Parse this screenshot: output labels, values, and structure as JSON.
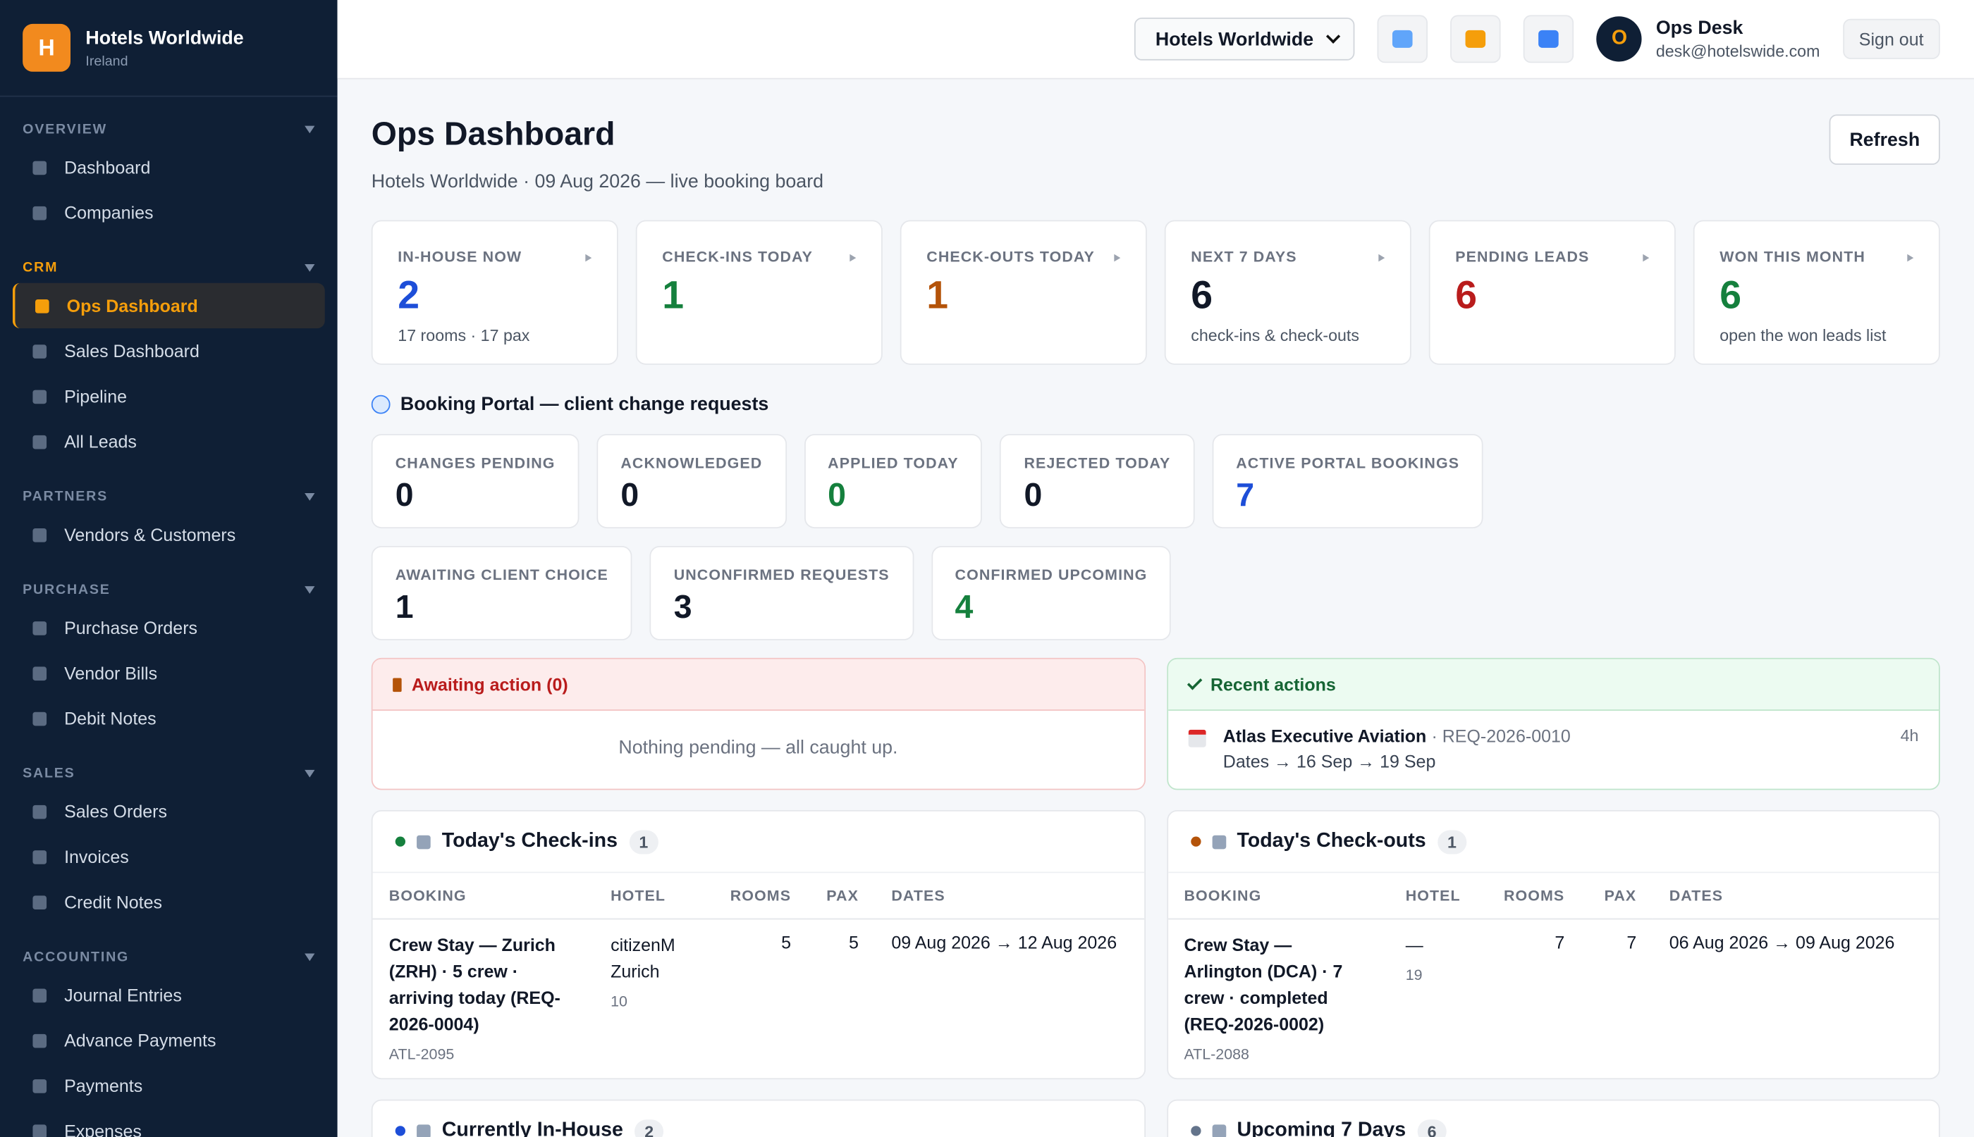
{
  "sidebar": {
    "brand": {
      "initial": "H",
      "name": "Hotels Worldwide",
      "subtitle": "Ireland"
    },
    "sections": [
      {
        "title": "OVERVIEW",
        "items": [
          {
            "label": "Dashboard"
          },
          {
            "label": "Companies"
          }
        ]
      },
      {
        "title": "CRM",
        "items": [
          {
            "label": "Ops Dashboard",
            "active": true
          },
          {
            "label": "Sales Dashboard"
          },
          {
            "label": "Pipeline"
          },
          {
            "label": "All Leads"
          }
        ]
      },
      {
        "title": "PARTNERS",
        "items": [
          {
            "label": "Vendors & Customers"
          }
        ]
      },
      {
        "title": "PURCHASE",
        "items": [
          {
            "label": "Purchase Orders"
          },
          {
            "label": "Vendor Bills"
          },
          {
            "label": "Debit Notes"
          }
        ]
      },
      {
        "title": "SALES",
        "items": [
          {
            "label": "Sales Orders"
          },
          {
            "label": "Invoices"
          },
          {
            "label": "Credit Notes"
          }
        ]
      },
      {
        "title": "ACCOUNTING",
        "items": [
          {
            "label": "Journal Entries"
          },
          {
            "label": "Advance Payments"
          },
          {
            "label": "Payments"
          },
          {
            "label": "Expenses"
          }
        ]
      }
    ]
  },
  "topbar": {
    "company_select": "Hotels Worldwide",
    "user": {
      "initial": "O",
      "name": "Ops Desk",
      "email": "desk@hotelswide.com"
    },
    "sign_out": "Sign out"
  },
  "header": {
    "title": "Ops Dashboard",
    "subtitle": "Hotels Worldwide · 09 Aug 2026 — live booking board",
    "refresh": "Refresh"
  },
  "kpis": [
    {
      "label": "IN-HOUSE NOW",
      "value": 2,
      "note": "17 rooms · 17 pax",
      "color": "#1d4ed8"
    },
    {
      "label": "CHECK-INS TODAY",
      "value": 1,
      "color": "#15803d"
    },
    {
      "label": "CHECK-OUTS TODAY",
      "value": 1,
      "color": "#b45309"
    },
    {
      "label": "NEXT 7 DAYS",
      "value": 6,
      "note": "check-ins & check-outs",
      "color": "#111827"
    },
    {
      "label": "PENDING LEADS",
      "value": 6,
      "color": "#b91c1c"
    },
    {
      "label": "WON THIS MONTH",
      "value": 6,
      "note": "open the won leads list",
      "color": "#15803d"
    }
  ],
  "portal": {
    "title": "Booking Portal — client change requests",
    "stats": [
      {
        "label": "CHANGES PENDING",
        "value": 0,
        "color": "#111827"
      },
      {
        "label": "ACKNOWLEDGED",
        "value": 0,
        "color": "#111827"
      },
      {
        "label": "APPLIED TODAY",
        "value": 0,
        "color": "#15803d"
      },
      {
        "label": "REJECTED TODAY",
        "value": 0,
        "color": "#111827"
      },
      {
        "label": "ACTIVE PORTAL BOOKINGS",
        "value": 7,
        "color": "#1d4ed8"
      },
      {
        "label": "AWAITING CLIENT CHOICE",
        "value": 1,
        "color": "#111827"
      },
      {
        "label": "UNCONFIRMED REQUESTS",
        "value": 3,
        "color": "#111827"
      },
      {
        "label": "CONFIRMED UPCOMING",
        "value": 4,
        "color": "#15803d"
      }
    ]
  },
  "awaiting": {
    "title": "Awaiting action (0)",
    "empty": "Nothing pending — all caught up."
  },
  "recent": {
    "title": "Recent actions",
    "items": [
      {
        "client": "Atlas Executive Aviation",
        "ref": "· REQ-2026-0010",
        "detail": "Dates → 16 Sep → 19 Sep",
        "age": "4h"
      }
    ]
  },
  "tables": [
    {
      "title": "Today's Check-ins",
      "count": 1,
      "dot": "#15803d",
      "columns": [
        "BOOKING",
        "HOTEL",
        "ROOMS",
        "PAX",
        "DATES"
      ],
      "rows": [
        {
          "booking": "Crew Stay — Zurich (ZRH) · 5 crew · arriving today (REQ-2026-0004)",
          "code": "ATL-2095",
          "hotel": "citizenM Zurich",
          "hotel_sub": "10",
          "rooms": 5,
          "pax": 5,
          "dates": "09 Aug 2026 → 12 Aug 2026"
        }
      ]
    },
    {
      "title": "Today's Check-outs",
      "count": 1,
      "dot": "#b45309",
      "columns": [
        "BOOKING",
        "HOTEL",
        "ROOMS",
        "PAX",
        "DATES"
      ],
      "rows": [
        {
          "booking": "Crew Stay — Arlington (DCA) · 7 crew · completed (REQ-2026-0002)",
          "code": "ATL-2088",
          "hotel": "—",
          "hotel_sub": "19",
          "rooms": 7,
          "pax": 7,
          "dates": "06 Aug 2026 → 09 Aug 2026"
        }
      ]
    },
    {
      "title": "Currently In-House",
      "count": 2,
      "dot": "#1d4ed8"
    },
    {
      "title": "Upcoming 7 Days",
      "count": 6,
      "dot": "#64748b"
    }
  ]
}
